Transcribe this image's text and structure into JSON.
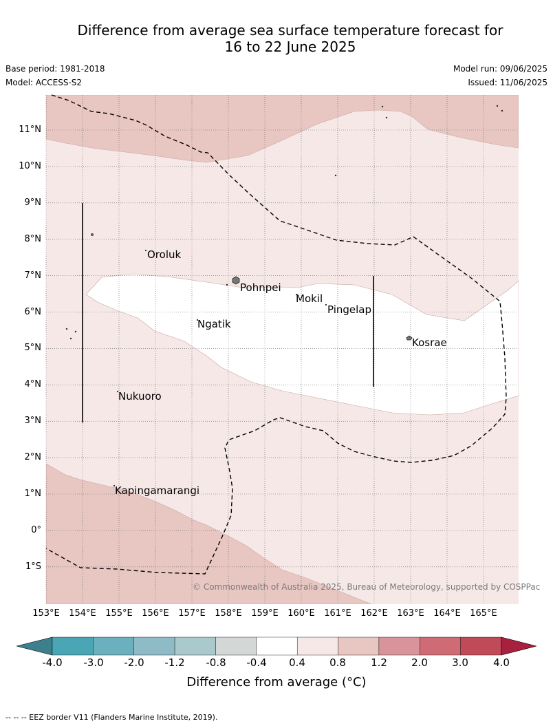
{
  "title_line1": "Difference from average sea surface temperature forecast for",
  "title_line2": "16 to 22 June 2025",
  "base_period": "Base period: 1981-2018",
  "model": "Model: ACCESS-S2",
  "model_run": "Model run: 09/06/2025",
  "issued": "Issued: 11/06/2025",
  "longitude_labels": [
    "153°E",
    "154°E",
    "155°E",
    "156°E",
    "157°E",
    "158°E",
    "159°E",
    "160°E",
    "161°E",
    "162°E",
    "163°E",
    "164°E",
    "165°E"
  ],
  "latitude_labels": [
    "11°N",
    "10°N",
    "9°N",
    "8°N",
    "7°N",
    "6°N",
    "5°N",
    "4°N",
    "3°N",
    "2°N",
    "1°N",
    "0°",
    "1°S"
  ],
  "places": {
    "oroluk": "Oroluk",
    "pohnpei": "Pohnpei",
    "mokil": "Mokil",
    "pingelap": "Pingelap",
    "ngatik": "Ngatik",
    "kosrae": "Kosrae",
    "nukuoro": "Nukuoro",
    "kapingamarangi": "Kapingamarangi"
  },
  "copyright": "© Commonwealth of Australia 2025, Bureau of Meteorology, supported by COSPPac",
  "colorbar": {
    "ticks": [
      "-4.0",
      "-3.0",
      "-2.0",
      "-1.2",
      "-0.8",
      "-0.4",
      "0.4",
      "0.8",
      "1.2",
      "2.0",
      "3.0",
      "4.0"
    ],
    "colors": [
      "#3d7f8c",
      "#4aa5b5",
      "#6bb0be",
      "#8fbbc6",
      "#aac9cc",
      "#d3d7d6",
      "#ffffff",
      "#f5e8e7",
      "#e8c6c1",
      "#d9939a",
      "#cf6b75",
      "#c04a58",
      "#a8203e"
    ],
    "label": "Difference from average (°C)"
  },
  "footnote": "-- -- -- EEZ border V11 (Flanders Marine Institute, 2019)."
}
